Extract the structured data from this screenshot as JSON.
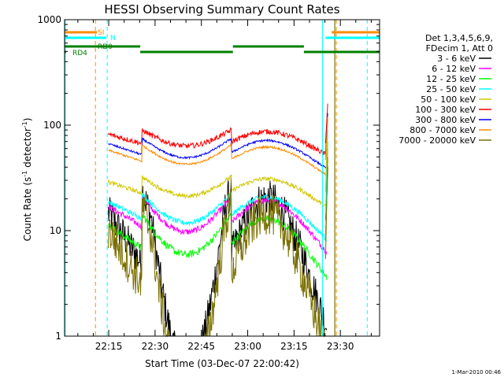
{
  "chart_data": {
    "type": "line",
    "title": "HESSI Observing Summary Count Rates",
    "xlabel": "Start Time (03-Dec-07 22:00:42)",
    "ylabel_main": "Count Rate (s",
    "ylabel_sup1": "-1",
    "ylabel_mid": " detector",
    "ylabel_sup2": "-1",
    "ylabel_end": ")",
    "y_scale": "log",
    "ylim": [
      1,
      1000
    ],
    "xlim": [
      0,
      102
    ],
    "x_unit": "minutes after 22:00:42",
    "x_ticks": [
      {
        "label": "22:15",
        "x": 14.3
      },
      {
        "label": "22:30",
        "x": 29.3
      },
      {
        "label": "22:45",
        "x": 44.3
      },
      {
        "label": "23:00",
        "x": 59.3
      },
      {
        "label": "23:15",
        "x": 74.3
      },
      {
        "label": "23:30",
        "x": 89.3
      }
    ],
    "y_ticks": [
      {
        "label": "1",
        "y": 1
      },
      {
        "label": "10",
        "y": 10
      },
      {
        "label": "100",
        "y": 100
      },
      {
        "label": "1000",
        "y": 1000
      }
    ],
    "legend": {
      "placement": "right",
      "header_line1": "Det 1,3,4,5,6,9,",
      "header_line2": "FDecim 1, Att 0"
    },
    "series": [
      {
        "name": "3 - 6 keV",
        "color": "#000000"
      },
      {
        "name": "6 - 12 keV",
        "color": "#ff00ff"
      },
      {
        "name": "12 - 25 keV",
        "color": "#00ff00"
      },
      {
        "name": "25 - 50 keV",
        "color": "#00ffff"
      },
      {
        "name": "50 - 100 keV",
        "color": "#d2c800"
      },
      {
        "name": "100 - 300 keV",
        "color": "#ff0000"
      },
      {
        "name": "300 - 800 keV",
        "color": "#0000ff"
      },
      {
        "name": "800 - 7000 keV",
        "color": "#ff8c00"
      },
      {
        "name": "7000 - 20000 keV",
        "color": "#7a7000"
      }
    ],
    "flag_bars": [
      {
        "label": "SI",
        "color": "#ff8c00",
        "ranges": [
          [
            0,
            10.5
          ],
          [
            86.5,
            102
          ]
        ]
      },
      {
        "label": "N",
        "color": "#00ffff",
        "ranges": [
          [
            0,
            13.5
          ],
          [
            84.5,
            102
          ]
        ]
      },
      {
        "label": "RD0",
        "color": "#008000",
        "ranges": [
          [
            0,
            24.5
          ],
          [
            54.5,
            77.5
          ]
        ]
      },
      {
        "label": "RD4",
        "color": "#008000",
        "ranges": [
          [
            0,
            0.5
          ],
          [
            24.5,
            54.5
          ],
          [
            77.5,
            102
          ]
        ]
      }
    ],
    "night_boundaries": [
      0.2,
      83.5
    ],
    "saa_boundaries": [
      10,
      13.8,
      88,
      98
    ],
    "attenuator_line": 87.5,
    "footer_date": "1-Mar-2010 00:46"
  }
}
